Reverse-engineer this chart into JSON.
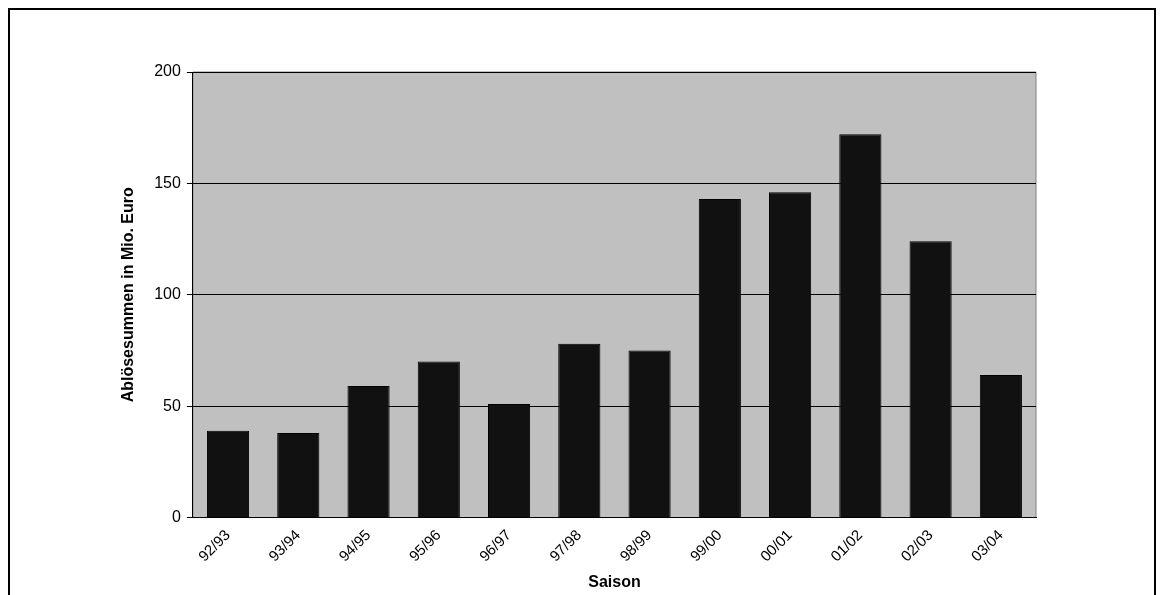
{
  "chart_data": {
    "type": "bar",
    "xlabel": "Saison",
    "ylabel": "Ablösesummen in Mio. Euro",
    "categories": [
      "92/93",
      "93/94",
      "94/95",
      "95/96",
      "96/97",
      "97/98",
      "98/99",
      "99/00",
      "00/01",
      "01/02",
      "02/03",
      "03/04"
    ],
    "values": [
      39,
      38,
      59,
      70,
      51,
      78,
      75,
      143,
      146,
      172,
      124,
      64
    ],
    "color": "#111111",
    "ylim": [
      0,
      200
    ],
    "yticks": [
      0,
      50,
      100,
      150,
      200
    ],
    "grid": "y",
    "legend": false
  }
}
